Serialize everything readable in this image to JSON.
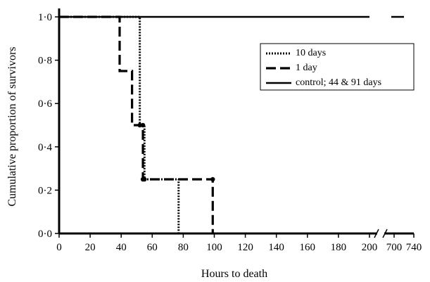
{
  "chart_data": {
    "type": "line",
    "step": true,
    "title": "",
    "xlabel": "Hours to death",
    "ylabel": "Cumulative proportion of survivors",
    "ylim": [
      0,
      1
    ],
    "xlim": [
      0,
      740
    ],
    "axis_break": {
      "from": 205,
      "to": 690
    },
    "x_ticks": [
      {
        "value": 0,
        "label": "0"
      },
      {
        "value": 20,
        "label": "20"
      },
      {
        "value": 40,
        "label": "40"
      },
      {
        "value": 60,
        "label": "60"
      },
      {
        "value": 80,
        "label": "80"
      },
      {
        "value": 100,
        "label": "100"
      },
      {
        "value": 120,
        "label": "120"
      },
      {
        "value": 140,
        "label": "140"
      },
      {
        "value": 160,
        "label": "160"
      },
      {
        "value": 180,
        "label": "180"
      },
      {
        "value": 200,
        "label": "200"
      },
      {
        "value": 700,
        "label": "700"
      },
      {
        "value": 740,
        "label": "740"
      }
    ],
    "y_ticks": [
      {
        "value": 0,
        "label": "0·0"
      },
      {
        "value": 0.2,
        "label": "0·2"
      },
      {
        "value": 0.4,
        "label": "0·4"
      },
      {
        "value": 0.6,
        "label": "0·6"
      },
      {
        "value": 0.8,
        "label": "0·8"
      },
      {
        "value": 1.0,
        "label": "1·0"
      }
    ],
    "legend_position": "upper-right",
    "series": [
      {
        "name": "10 days",
        "style": "dotted",
        "points": [
          [
            0,
            1
          ],
          [
            52,
            1
          ],
          [
            52,
            0.5
          ],
          [
            55,
            0.5
          ],
          [
            55,
            0.25
          ],
          [
            77,
            0.25
          ],
          [
            77,
            0
          ]
        ],
        "markers": [
          [
            52,
            0.5
          ],
          [
            55,
            0.25
          ]
        ]
      },
      {
        "name": "1 day",
        "style": "dashed",
        "points": [
          [
            0,
            1
          ],
          [
            39,
            1
          ],
          [
            39,
            0.75
          ],
          [
            47,
            0.75
          ],
          [
            47,
            0.5
          ],
          [
            54,
            0.5
          ],
          [
            54,
            0.25
          ],
          [
            99,
            0.25
          ],
          [
            99,
            0
          ]
        ],
        "markers": [
          [
            54,
            0.5
          ],
          [
            54,
            0.25
          ],
          [
            99,
            0.25
          ]
        ]
      },
      {
        "name": "control; 44 & 91 days",
        "style": "solid",
        "points": [
          [
            0,
            1
          ],
          [
            200,
            1
          ]
        ],
        "markers": []
      }
    ]
  }
}
